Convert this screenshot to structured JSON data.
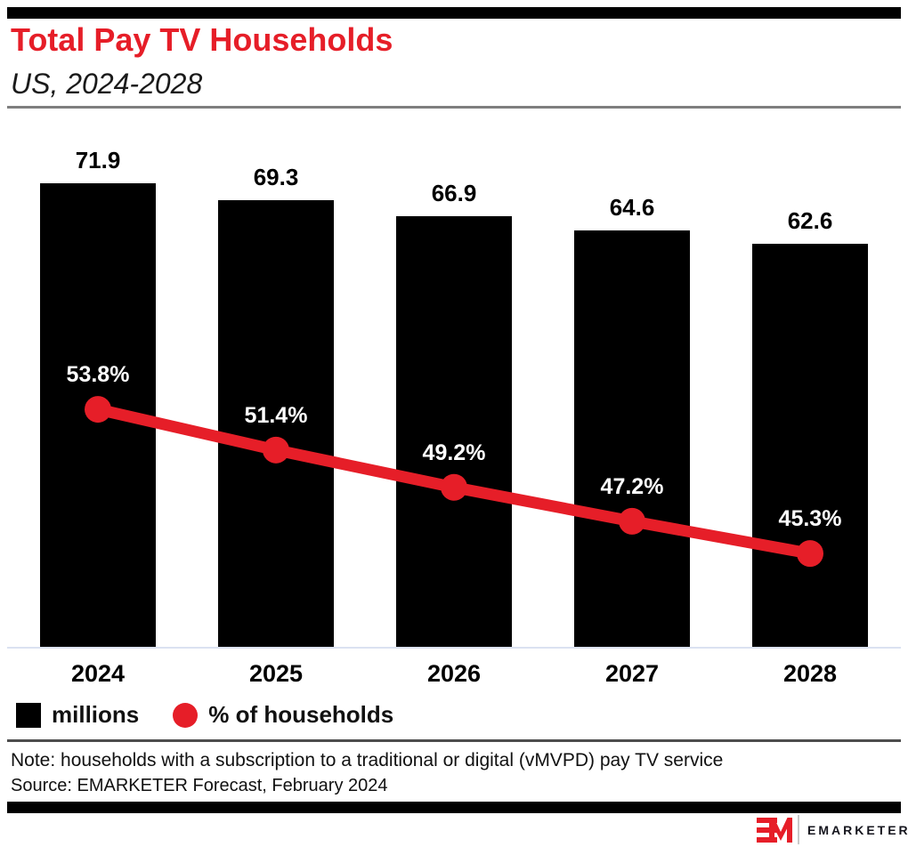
{
  "header": {
    "title": "Total Pay TV Households",
    "subtitle": "US, 2024-2028"
  },
  "chart_data": {
    "type": "bar",
    "title": "Total Pay TV Households",
    "subtitle": "US, 2024-2028",
    "categories": [
      "2024",
      "2025",
      "2026",
      "2027",
      "2028"
    ],
    "series": [
      {
        "name": "millions",
        "type": "bar",
        "values": [
          71.9,
          69.3,
          66.9,
          64.6,
          62.6
        ],
        "labels": [
          "71.9",
          "69.3",
          "66.9",
          "64.6",
          "62.6"
        ],
        "color": "#000000",
        "axis": "left"
      },
      {
        "name": "% of households",
        "type": "line",
        "values": [
          53.8,
          51.4,
          49.2,
          47.2,
          45.3
        ],
        "labels": [
          "53.8%",
          "51.4%",
          "49.2%",
          "47.2%",
          "45.3%"
        ],
        "color": "#e61e28",
        "axis": "right"
      }
    ],
    "ylim": [
      0,
      79
    ],
    "y2lim": [
      39.8,
      69.8
    ],
    "grid": false,
    "legend_position": "bottom-left"
  },
  "footer": {
    "note": "Note: households with a subscription to a traditional or digital (vMVPD) pay TV service",
    "source": "Source: EMARKETER Forecast, February 2024"
  },
  "branding": {
    "logo_mark": "EM",
    "logo_text": "EMARKETER"
  },
  "colors": {
    "accent_red": "#e61e28",
    "bar_black": "#000000",
    "axis_line": "#dbe2f1",
    "divider_gray": "#7f7f7f"
  }
}
